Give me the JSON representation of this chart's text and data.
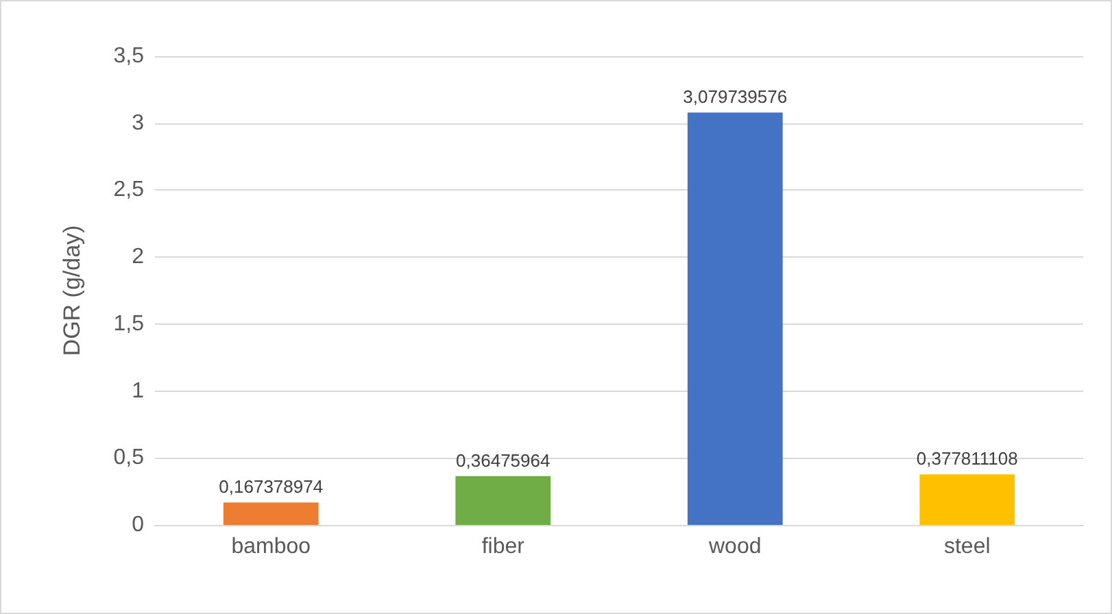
{
  "chart_data": {
    "type": "bar",
    "ylabel": "DGR (g/day)",
    "categories": [
      "bamboo",
      "fiber",
      "wood",
      "steel"
    ],
    "values": [
      0.167378974,
      0.36475964,
      3.079739576,
      0.377811108
    ],
    "colors": [
      "#ed7d31",
      "#70ad47",
      "#4472c4",
      "#ffc000"
    ],
    "value_labels": [
      "0,167378974",
      "0,36475964",
      "3,079739576",
      "0,377811108"
    ],
    "ylim": [
      0,
      3.5
    ],
    "yticks": [
      {
        "value": 0,
        "label": "0"
      },
      {
        "value": 0.5,
        "label": "0,5"
      },
      {
        "value": 1,
        "label": "1"
      },
      {
        "value": 1.5,
        "label": "1,5"
      },
      {
        "value": 2,
        "label": "2"
      },
      {
        "value": 2.5,
        "label": "2,5"
      },
      {
        "value": 3,
        "label": "3"
      },
      {
        "value": 3.5,
        "label": "3,5"
      }
    ],
    "grid": "y"
  }
}
